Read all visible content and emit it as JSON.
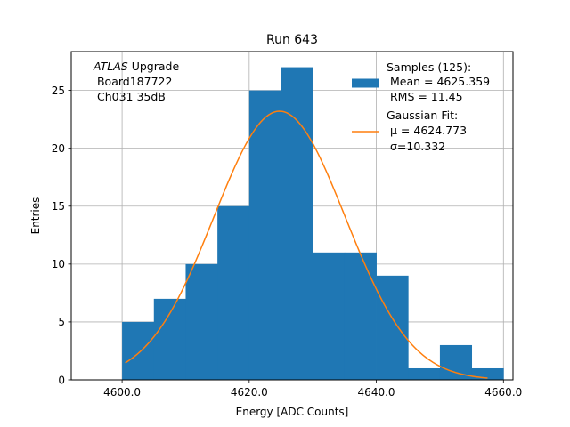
{
  "chart_data": {
    "type": "bar",
    "title": "Run 643",
    "xlabel": "Energy [ADC Counts]",
    "ylabel": "Entries",
    "xlim": [
      4592,
      4661.5
    ],
    "ylim": [
      0,
      28.35
    ],
    "xticks": [
      4600,
      4620,
      4640,
      4660
    ],
    "xtick_labels": [
      "4600.0",
      "4620.0",
      "4640.0",
      "4660.0"
    ],
    "yticks": [
      0,
      5,
      10,
      15,
      20,
      25
    ],
    "ytick_labels": [
      "0",
      "5",
      "10",
      "15",
      "20",
      "25"
    ],
    "grid": true,
    "bins": {
      "edges": [
        4600,
        4605,
        4610,
        4615,
        4620,
        4625,
        4630,
        4635,
        4640,
        4645,
        4650,
        4655,
        4660
      ],
      "counts": [
        5,
        7,
        10,
        15,
        25,
        27,
        11,
        11,
        9,
        1,
        3,
        1
      ],
      "color": "#1f77b4"
    },
    "fit": {
      "type": "gaussian",
      "mu": 4624.773,
      "sigma": 10.332,
      "amplitude": 23.2,
      "x_range": [
        4600.5,
        4657.5
      ],
      "color": "#ff7f0e"
    },
    "legend": {
      "placement": "top-right",
      "samples_lines": [
        "Samples (125):",
        " Mean = 4625.359",
        " RMS = 11.45"
      ],
      "fit_lines": [
        "Gaussian Fit:",
        "μ = 4624.773",
        "σ=10.332"
      ]
    },
    "annotation": {
      "italic": "ATLAS",
      "rest": " Upgrade",
      "line2": " Board187722",
      "line3": " Ch031 35dB"
    }
  }
}
